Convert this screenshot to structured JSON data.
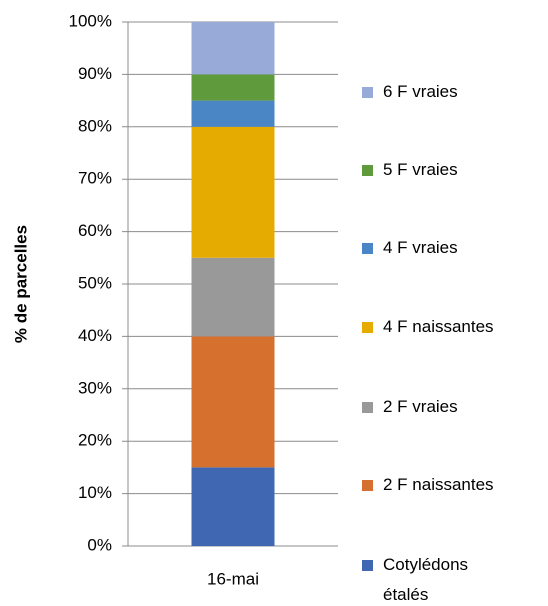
{
  "chart_data": {
    "type": "stacked_bar",
    "categories": [
      "16-mai"
    ],
    "y_label": "% de parcelles",
    "series": [
      {
        "name": "Cotylédons étalés",
        "color": "#4068b2",
        "values": [
          15
        ]
      },
      {
        "name": "2 F naissantes",
        "color": "#d6702e",
        "values": [
          25
        ]
      },
      {
        "name": "2 F vraies",
        "color": "#999999",
        "values": [
          15
        ]
      },
      {
        "name": "4 F naissantes",
        "color": "#e5ab00",
        "values": [
          25
        ]
      },
      {
        "name": "4 F vraies",
        "color": "#4a86c5",
        "values": [
          5
        ]
      },
      {
        "name": "5 F vraies",
        "color": "#5f9a3d",
        "values": [
          5
        ]
      },
      {
        "name": "6 F vraies",
        "color": "#97aad8",
        "values": [
          10
        ]
      }
    ],
    "ylim": [
      0,
      100
    ],
    "yticks": [
      {
        "value": 0,
        "label": "0%"
      },
      {
        "value": 10,
        "label": "10%"
      },
      {
        "value": 20,
        "label": "20%"
      },
      {
        "value": 30,
        "label": "30%"
      },
      {
        "value": 40,
        "label": "40%"
      },
      {
        "value": 50,
        "label": "50%"
      },
      {
        "value": 60,
        "label": "60%"
      },
      {
        "value": 70,
        "label": "70%"
      },
      {
        "value": 80,
        "label": "80%"
      },
      {
        "value": 90,
        "label": "90%"
      },
      {
        "value": 100,
        "label": "100%"
      }
    ],
    "grid": true,
    "legend": "right"
  }
}
